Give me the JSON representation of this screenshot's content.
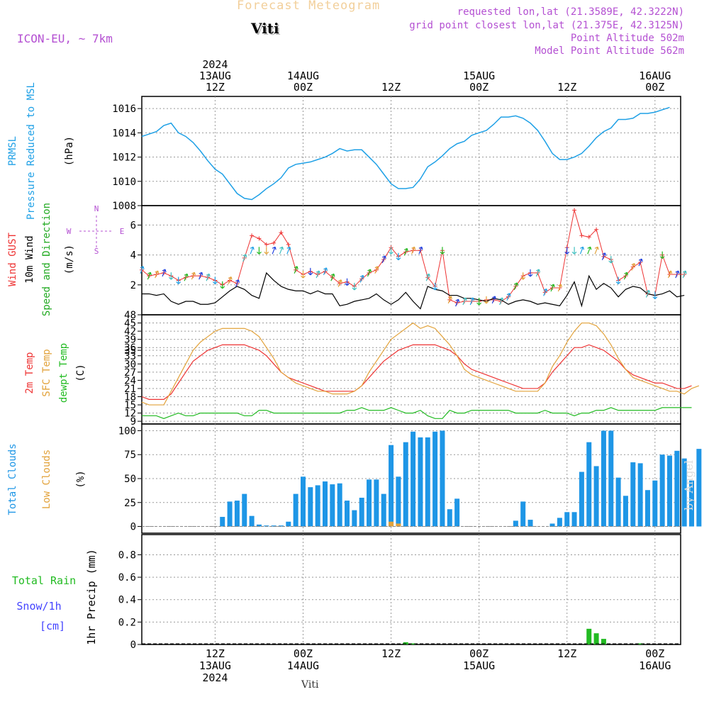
{
  "header": {
    "title": "Forecast Meteogram",
    "location": "Viti",
    "model": "ICON-EU, ~ 7km",
    "requested": "requested lon,lat (21.3589E, 42.3222N)",
    "gridpoint": "grid point closest lon,lat (21.375E, 42.3125N)",
    "point_alt": "Point Altitude 502m",
    "model_alt": "Model Point Altitude 562m",
    "footer": "Viti",
    "watermark": "by Angel"
  },
  "colors": {
    "pressure": "#1ea0e6",
    "gust": "#ee3333",
    "wind": "#000000",
    "t2m": "#ee3333",
    "sfc": "#e2a23a",
    "dewpt": "#22bb22",
    "clouds": "#1e96e6",
    "low_clouds": "#e2a23a",
    "rain": "#22bb22",
    "snow": "#4444ff",
    "meta": "#b450d2"
  },
  "chart_data": [
    {
      "type": "line",
      "panel": "pressure",
      "ylabel": [
        "PRMSL",
        "Pressure Reduced to MSL"
      ],
      "unit": "(hPa)",
      "ylim": [
        1008,
        1017
      ],
      "yticks": [
        1008,
        1010,
        1012,
        1014,
        1016
      ],
      "x_hours_start": 0,
      "x_hours_step": 1,
      "series": [
        {
          "values": [
            1013.7,
            1013.9,
            1014.1,
            1014.6,
            1014.8,
            1014.0,
            1013.7,
            1013.2,
            1012.5,
            1011.7,
            1011.0,
            1010.6,
            1009.8,
            1009.0,
            1008.6,
            1008.5,
            1008.9,
            1009.4,
            1009.8,
            1010.3,
            1011.1,
            1011.4,
            1011.5,
            1011.6,
            1011.8,
            1012.0,
            1012.3,
            1012.7,
            1012.5,
            1012.6,
            1012.6,
            1012.0,
            1011.4,
            1010.6,
            1009.8,
            1009.4,
            1009.4,
            1009.5,
            1010.2,
            1011.2,
            1011.6,
            1012.1,
            1012.7,
            1013.1,
            1013.3,
            1013.8,
            1014.0,
            1014.2,
            1014.7,
            1015.3,
            1015.3,
            1015.4,
            1015.2,
            1014.8,
            1014.2,
            1013.3,
            1012.3,
            1011.8,
            1011.8,
            1012.0,
            1012.3,
            1012.9,
            1013.6,
            1014.1,
            1014.4,
            1015.1,
            1015.1,
            1015.2,
            1015.6,
            1015.6,
            1015.7,
            1015.9,
            1016.1
          ]
        }
      ]
    },
    {
      "type": "line",
      "panel": "wind",
      "ylabel": [
        "Wind GUST",
        "10m Wind",
        "Speed and Direction"
      ],
      "unit": "(m/s)",
      "compass": {
        "n": "N",
        "w": "W",
        "e": "E",
        "s": "S"
      },
      "ylim": [
        0,
        7.3
      ],
      "yticks": [
        2,
        4,
        6
      ],
      "series": [
        {
          "name": "Wind GUST",
          "values": [
            3.0,
            2.6,
            2.7,
            2.8,
            2.6,
            2.3,
            2.5,
            2.6,
            2.6,
            2.5,
            2.3,
            2.0,
            2.3,
            2.1,
            3.8,
            5.3,
            5.1,
            4.7,
            4.8,
            5.5,
            4.7,
            3.0,
            2.7,
            2.9,
            2.7,
            2.9,
            2.5,
            2.1,
            2.2,
            1.9,
            2.4,
            2.8,
            3.0,
            3.7,
            4.5,
            3.9,
            4.2,
            4.3,
            4.3,
            2.5,
            1.9,
            4.3,
            1.0,
            0.8,
            0.9,
            0.9,
            0.9,
            1.0,
            1.0,
            0.9,
            1.2,
            1.9,
            2.6,
            2.8,
            2.8,
            1.5,
            1.8,
            1.8,
            4.5,
            7.0,
            5.3,
            5.2,
            5.7,
            3.9,
            3.7,
            2.3,
            2.6,
            3.2,
            3.5,
            1.4,
            1.3,
            4.0,
            2.7,
            2.7,
            2.7
          ]
        },
        {
          "name": "10m Wind",
          "values": [
            1.4,
            1.4,
            1.3,
            1.4,
            0.9,
            0.7,
            0.9,
            0.9,
            0.7,
            0.7,
            0.8,
            1.2,
            1.6,
            1.9,
            1.7,
            1.3,
            1.1,
            2.8,
            2.3,
            1.9,
            1.7,
            1.6,
            1.6,
            1.4,
            1.6,
            1.4,
            1.4,
            0.6,
            0.7,
            0.9,
            1.0,
            1.1,
            1.4,
            1.0,
            0.7,
            1.0,
            1.5,
            0.9,
            0.4,
            1.9,
            1.7,
            1.6,
            1.3,
            1.3,
            1.1,
            1.1,
            1.0,
            0.9,
            1.1,
            1.0,
            0.7,
            0.9,
            1.0,
            0.9,
            0.7,
            0.8,
            0.7,
            0.6,
            1.3,
            2.2,
            0.6,
            2.6,
            1.7,
            2.1,
            1.8,
            1.2,
            1.7,
            1.9,
            1.8,
            1.4,
            1.3,
            1.4,
            1.6,
            1.2,
            1.3
          ]
        }
      ]
    },
    {
      "type": "line",
      "panel": "temperature",
      "ylabel": [
        "2m Temp",
        "SFC Temp",
        "dewpt Temp"
      ],
      "unit": "(C)",
      "ylim": [
        8,
        48
      ],
      "yticks": [
        9,
        12,
        15,
        18,
        21,
        24,
        27,
        30,
        33,
        35,
        36,
        39,
        42,
        45,
        48
      ],
      "series": [
        {
          "name": "2m Temp",
          "values": [
            18,
            17,
            17,
            17,
            19,
            23,
            27,
            31,
            33,
            35,
            36,
            37,
            37,
            37,
            37,
            36,
            35,
            33,
            30,
            27,
            25,
            24,
            23,
            22,
            21,
            20,
            20,
            20,
            20,
            20,
            22,
            25,
            28,
            31,
            33,
            35,
            36,
            37,
            37,
            37,
            37,
            36,
            35,
            33,
            30,
            28,
            27,
            26,
            25,
            24,
            23,
            22,
            21,
            21,
            21,
            23,
            27,
            30,
            33,
            36,
            36,
            37,
            36,
            35,
            33,
            31,
            28,
            26,
            25,
            24,
            23,
            23,
            22,
            21,
            21,
            22
          ]
        },
        {
          "name": "SFC Temp",
          "values": [
            16,
            15,
            15,
            15,
            20,
            25,
            30,
            35,
            38,
            40,
            42,
            43,
            43,
            43,
            43,
            42,
            40,
            36,
            32,
            27,
            25,
            23,
            22,
            21,
            20,
            20,
            19,
            19,
            19,
            20,
            22,
            27,
            31,
            35,
            39,
            41,
            43,
            45,
            43,
            44,
            43,
            40,
            37,
            33,
            28,
            26,
            25,
            24,
            23,
            22,
            21,
            20,
            20,
            20,
            20,
            23,
            29,
            33,
            38,
            42,
            45,
            45,
            44,
            41,
            37,
            32,
            28,
            25,
            24,
            23,
            22,
            21,
            20,
            20,
            19,
            21,
            22
          ]
        },
        {
          "name": "dewpt Temp",
          "values": [
            11,
            11,
            11,
            10,
            11,
            12,
            11,
            11,
            12,
            12,
            12,
            12,
            12,
            12,
            11,
            11,
            13,
            13,
            12,
            12,
            12,
            12,
            12,
            12,
            12,
            12,
            12,
            12,
            13,
            13,
            14,
            13,
            13,
            13,
            14,
            13,
            12,
            12,
            13,
            11,
            10,
            10,
            13,
            12,
            12,
            13,
            13,
            13,
            13,
            13,
            13,
            12,
            12,
            12,
            12,
            13,
            12,
            12,
            12,
            11,
            12,
            12,
            13,
            13,
            14,
            13,
            13,
            13,
            13,
            13,
            13,
            14,
            14,
            14,
            14,
            14
          ]
        }
      ]
    },
    {
      "type": "bar",
      "panel": "clouds",
      "ylabel": [
        "Total Clouds",
        "Low Clouds"
      ],
      "unit": "(%)",
      "ylim": [
        -7,
        107
      ],
      "yticks": [
        0,
        25,
        50,
        75,
        100
      ],
      "series": [
        {
          "name": "Total Clouds",
          "values": [
            0,
            0,
            0,
            0,
            0,
            0,
            0,
            0,
            0,
            0,
            0,
            10,
            26,
            27,
            34,
            11,
            2,
            1,
            1,
            1,
            5,
            34,
            52,
            41,
            43,
            47,
            44,
            45,
            27,
            17,
            30,
            49,
            49,
            34,
            85,
            52,
            88,
            99,
            93,
            93,
            99,
            100,
            18,
            29,
            0,
            0,
            0,
            0,
            0,
            0,
            0,
            6,
            26,
            7,
            0,
            0,
            3,
            9,
            15,
            15,
            57,
            88,
            63,
            100,
            100,
            51,
            32,
            67,
            66,
            38,
            48,
            75,
            74,
            79,
            71,
            48,
            81
          ]
        },
        {
          "name": "Low Clouds",
          "values": [
            0,
            0,
            0,
            0,
            0,
            0,
            0,
            0,
            0,
            0,
            0,
            0,
            0,
            0,
            0,
            0,
            0,
            0,
            0,
            0,
            0,
            0,
            0,
            0,
            0,
            0,
            0,
            0,
            0,
            0,
            0,
            0,
            0,
            0,
            5,
            3,
            0,
            0,
            0,
            0,
            0,
            0,
            0,
            0,
            0,
            0,
            0,
            0,
            0,
            0,
            0,
            0,
            0,
            0,
            0,
            0,
            0,
            0,
            0,
            0,
            0,
            0,
            0,
            0,
            0,
            0,
            0,
            0,
            0,
            0,
            0,
            0,
            0,
            0,
            0,
            0,
            0
          ]
        }
      ]
    },
    {
      "type": "bar",
      "panel": "precip",
      "ylabel": [
        "1hr Precip (mm)"
      ],
      "side_labels": [
        "Total Rain",
        "Snow/1h",
        "[cm]"
      ],
      "ylim": [
        0,
        0.98
      ],
      "yticks": [
        0,
        0.2,
        0.4,
        0.6,
        0.8
      ],
      "series": [
        {
          "name": "Total Rain",
          "values": [
            {
              "h": 36,
              "v": 0.02
            },
            {
              "h": 37,
              "v": 0.01
            },
            {
              "h": 61,
              "v": 0.14
            },
            {
              "h": 62,
              "v": 0.1
            },
            {
              "h": 63,
              "v": 0.05
            },
            {
              "h": 68,
              "v": 0.01
            }
          ]
        }
      ]
    }
  ],
  "axis_time": {
    "hours_start": 0,
    "hours_end": 73.5,
    "gridlines_hours": [
      10,
      22,
      34,
      46,
      58,
      70
    ],
    "top_labels": [
      {
        "h": 10,
        "lines": [
          "2024",
          "13AUG",
          "12Z"
        ]
      },
      {
        "h": 22,
        "lines": [
          "14AUG",
          "00Z"
        ]
      },
      {
        "h": 34,
        "lines": [
          "12Z"
        ]
      },
      {
        "h": 46,
        "lines": [
          "15AUG",
          "00Z"
        ]
      },
      {
        "h": 58,
        "lines": [
          "12Z"
        ]
      },
      {
        "h": 70,
        "lines": [
          "16AUG",
          "00Z"
        ]
      }
    ],
    "bottom_labels": [
      {
        "h": 10,
        "lines": [
          "12Z",
          "13AUG",
          "2024"
        ]
      },
      {
        "h": 22,
        "lines": [
          "00Z",
          "14AUG"
        ]
      },
      {
        "h": 34,
        "lines": [
          "12Z"
        ]
      },
      {
        "h": 46,
        "lines": [
          "00Z",
          "15AUG"
        ]
      },
      {
        "h": 58,
        "lines": [
          "12Z"
        ]
      },
      {
        "h": 70,
        "lines": [
          "00Z",
          "16AUG"
        ]
      }
    ]
  }
}
